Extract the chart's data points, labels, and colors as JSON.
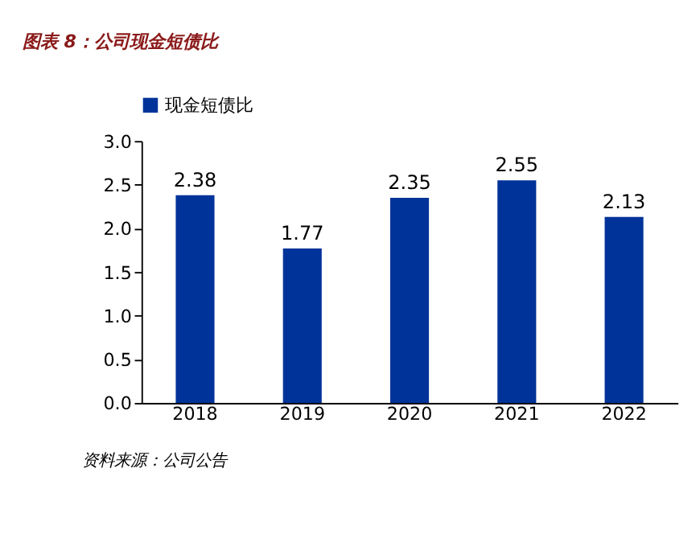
{
  "chart_data": {
    "type": "bar",
    "title": "图表 8：公司现金短债比",
    "categories": [
      "2018",
      "2019",
      "2020",
      "2021",
      "2022"
    ],
    "series": [
      {
        "name": "现金短债比",
        "color": "#003399",
        "values": [
          2.38,
          1.77,
          2.35,
          2.55,
          2.13
        ]
      }
    ],
    "ylim": [
      0,
      3
    ],
    "yticks": [
      {
        "value": 0,
        "label": "0.0"
      },
      0.5,
      {
        "value": 1,
        "label": "1.0"
      },
      1.5,
      {
        "value": 2,
        "label": "2.0"
      },
      2.5,
      {
        "value": 3,
        "label": "3.0"
      }
    ],
    "grid": false,
    "legend": "top",
    "data_labels": true,
    "annotations": [
      "资料来源：公司公告"
    ]
  }
}
